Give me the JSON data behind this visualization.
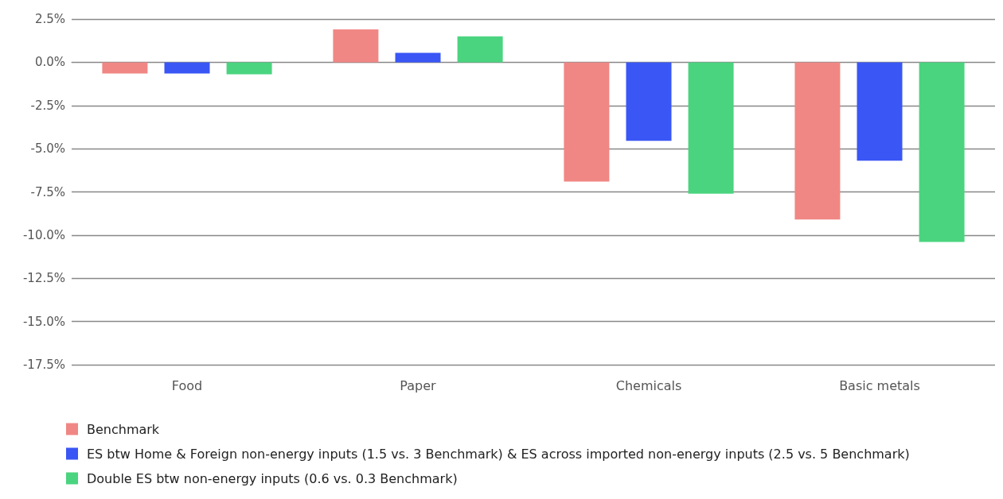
{
  "chart_data": {
    "type": "bar",
    "categories": [
      "Food",
      "Paper",
      "Chemicals",
      "Basic metals"
    ],
    "series": [
      {
        "name": "Benchmark",
        "color": "#f08784",
        "values": [
          -0.65,
          1.9,
          -6.9,
          -9.1
        ]
      },
      {
        "name": "ES btw Home & Foreign non-energy inputs (1.5 vs. 3 Benchmark) & ES across imported non-energy inputs (2.5 vs. 5 Benchmark)",
        "color": "#3a56f5",
        "values": [
          -0.65,
          0.55,
          -4.55,
          -5.7
        ]
      },
      {
        "name": "Double ES btw non-energy inputs (0.6 vs. 0.3 Benchmark)",
        "color": "#4ad47f",
        "values": [
          -0.7,
          1.5,
          -7.6,
          -10.4
        ]
      }
    ],
    "ylim": [
      -17.5,
      2.5
    ],
    "yticks": [
      {
        "value": 2.5,
        "label": "2.5%"
      },
      {
        "value": 0,
        "label": "0.0%"
      },
      {
        "value": -2.5,
        "label": "-2.5%"
      },
      {
        "value": -5,
        "label": "-5.0%"
      },
      {
        "value": -7.5,
        "label": "-7.5%"
      },
      {
        "value": -10,
        "label": "-10.0%"
      },
      {
        "value": -12.5,
        "label": "-12.5%"
      },
      {
        "value": -15,
        "label": "-15.0%"
      },
      {
        "value": -17.5,
        "label": "-17.5%"
      }
    ],
    "grid": "y",
    "legend": "bottom left"
  }
}
